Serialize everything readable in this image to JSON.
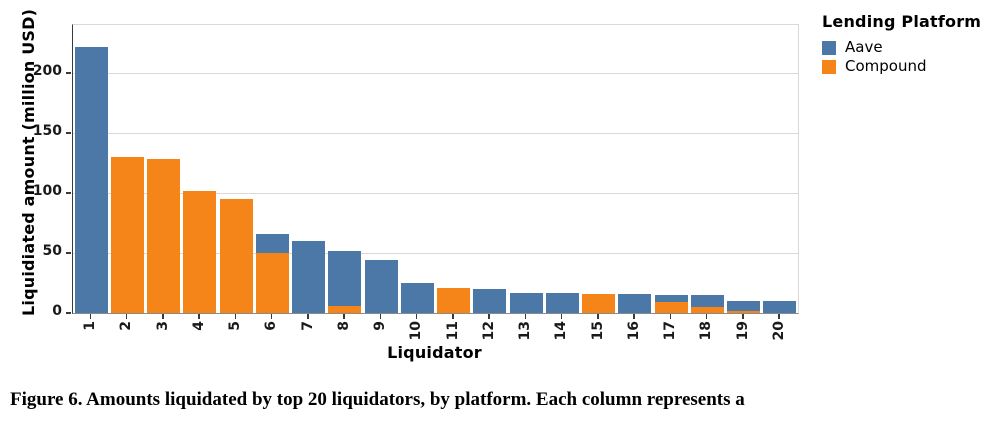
{
  "figure": {
    "caption": "Figure 6. Amounts liquidated by top 20 liquidators, by platform. Each column represents a"
  },
  "chart_data": {
    "type": "bar",
    "stacked": true,
    "title": "",
    "xlabel": "Liquidator",
    "ylabel": "Liquidiated amount (million USD)",
    "categories": [
      "1",
      "2",
      "3",
      "4",
      "5",
      "6",
      "7",
      "8",
      "9",
      "10",
      "11",
      "12",
      "13",
      "14",
      "15",
      "16",
      "17",
      "18",
      "19",
      "20"
    ],
    "series": [
      {
        "name": "Compound",
        "color": "#f58518",
        "values": [
          0,
          130,
          128,
          102,
          95,
          50,
          0,
          6,
          0,
          0,
          21,
          0,
          0,
          0,
          16,
          0,
          9,
          5,
          2,
          0
        ]
      },
      {
        "name": "Aave",
        "color": "#4c78a8",
        "values": [
          222,
          0,
          0,
          0,
          0,
          16,
          60,
          46,
          44,
          25,
          0,
          20,
          17,
          17,
          0,
          16,
          6,
          10,
          8,
          10
        ]
      }
    ],
    "stack_order_note": "Compound drawn at bottom of stack, Aave on top",
    "legend": {
      "title": "Lending Platform",
      "position": "right",
      "entries": [
        {
          "label": "Aave",
          "color": "#4c78a8"
        },
        {
          "label": "Compound",
          "color": "#f58518"
        }
      ]
    },
    "ylim": [
      0,
      240
    ],
    "yticks": [
      0,
      50,
      100,
      150,
      200
    ],
    "grid": true,
    "colors": {
      "grid": "#d9d9d9",
      "axis_left": "#3a3a3a",
      "axis_bottom": "#8a8a8a",
      "tick_text": "#1a1a1a"
    }
  }
}
